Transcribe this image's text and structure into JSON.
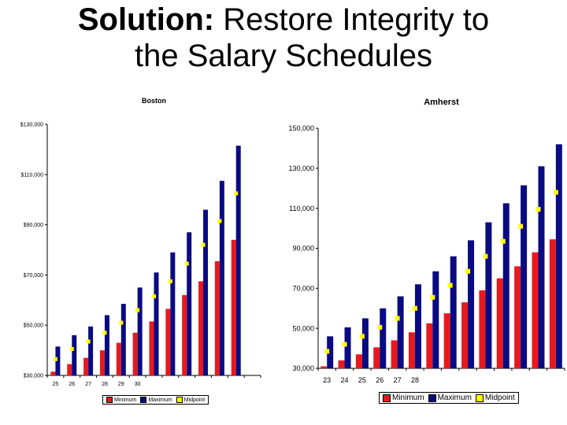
{
  "slide": {
    "title_bold": "Solution:",
    "title_rest_line1": " Restore Integrity to",
    "title_line2": "the Salary Schedules"
  },
  "colors": {
    "minimum": "#e8191c",
    "maximum": "#0a0a82",
    "midpoint": "#ffff00"
  },
  "chart_data": [
    {
      "type": "bar",
      "title": "Boston",
      "xlabel": "",
      "ylabel": "",
      "ylim": [
        30000,
        130000
      ],
      "yticks": [
        30000,
        50000,
        70000,
        90000,
        110000,
        130000
      ],
      "ytick_labels": [
        "$30,000",
        "$50,000",
        "$70,000",
        "$90,000",
        "$110,000",
        "$130,000"
      ],
      "category_labels": [
        "25",
        "26",
        "27",
        "28",
        "29",
        "30",
        "",
        "",
        "",
        "",
        "",
        "",
        ""
      ],
      "series": [
        {
          "name": "Minimum",
          "values": [
            31500,
            34500,
            37000,
            40000,
            43000,
            47000,
            51500,
            56500,
            62000,
            67500,
            75500,
            84000,
            null
          ]
        },
        {
          "name": "Maximum",
          "values": [
            41500,
            46000,
            49500,
            54000,
            58500,
            65000,
            71000,
            79000,
            87000,
            96000,
            107500,
            121500,
            null
          ]
        },
        {
          "name": "Midpoint",
          "values": [
            36500,
            40500,
            43500,
            47000,
            51000,
            56000,
            61500,
            67500,
            74500,
            82000,
            91500,
            102500,
            null
          ]
        }
      ],
      "legend": [
        "Minimum",
        "Maximum",
        "Midpoint"
      ],
      "legend_position": "bottom"
    },
    {
      "type": "bar",
      "title": "Amherst",
      "xlabel": "",
      "ylabel": "",
      "ylim": [
        30000,
        150000
      ],
      "yticks": [
        30000,
        50000,
        70000,
        90000,
        110000,
        130000,
        150000
      ],
      "ytick_labels": [
        "30,000",
        "50,000",
        "70,000",
        "90,000",
        "110,000",
        "130,000",
        "150,000"
      ],
      "category_labels": [
        "23",
        "24",
        "25",
        "26",
        "27",
        "28",
        "",
        "",
        "",
        "",
        "",
        "",
        "",
        ""
      ],
      "series": [
        {
          "name": "Minimum",
          "values": [
            31000,
            34000,
            37000,
            40500,
            44000,
            48000,
            52500,
            57500,
            63000,
            69000,
            75000,
            81000,
            88000,
            94500
          ]
        },
        {
          "name": "Maximum",
          "values": [
            46000,
            50500,
            55000,
            60000,
            66000,
            72000,
            78500,
            86000,
            94000,
            103000,
            112500,
            121500,
            131000,
            142000
          ]
        },
        {
          "name": "Midpoint",
          "values": [
            38500,
            42000,
            46000,
            50500,
            55000,
            60000,
            65500,
            71500,
            78500,
            86000,
            93500,
            101000,
            109500,
            118000
          ]
        }
      ],
      "legend": [
        "Minimum",
        "Maximum",
        "Midpoint"
      ],
      "legend_position": "bottom"
    }
  ]
}
